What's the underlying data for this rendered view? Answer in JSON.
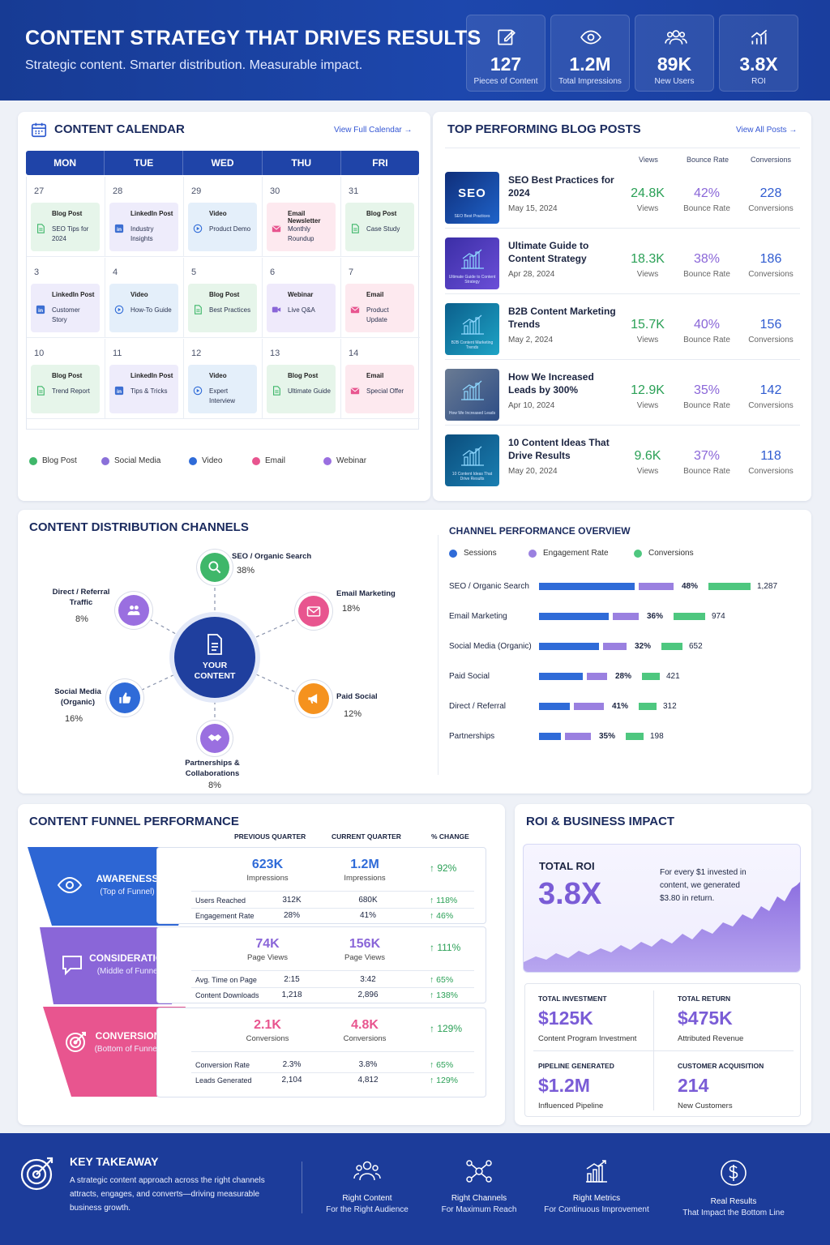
{
  "header": {
    "title": "CONTENT STRATEGY THAT DRIVES RESULTS",
    "subtitle": "Strategic content. Smarter distribution. Measurable impact.",
    "kpis": [
      {
        "value": "127",
        "label": "Pieces of Content",
        "icon": "edit-icon"
      },
      {
        "value": "1.2M",
        "label": "Total Impressions",
        "icon": "eye-icon"
      },
      {
        "value": "89K",
        "label": "New Users",
        "icon": "users-icon"
      },
      {
        "value": "3.8X",
        "label": "ROI",
        "icon": "growth-chart-icon"
      }
    ]
  },
  "calendar": {
    "title": "CONTENT CALENDAR",
    "link": "View Full Calendar →",
    "days": [
      "MON",
      "TUE",
      "WED",
      "THU",
      "FRI"
    ],
    "weeks": [
      [
        {
          "date": "27",
          "type": "blog",
          "title": "Blog Post",
          "desc": "SEO Tips for 2024"
        },
        {
          "date": "28",
          "type": "social",
          "title": "LinkedIn Post",
          "desc": "Industry Insights"
        },
        {
          "date": "29",
          "type": "video",
          "title": "Video",
          "desc": "Product Demo"
        },
        {
          "date": "30",
          "type": "email",
          "title": "Email Newsletter",
          "desc": "Monthly Roundup"
        },
        {
          "date": "31",
          "type": "blog",
          "title": "Blog Post",
          "desc": "Case Study"
        }
      ],
      [
        {
          "date": "3",
          "type": "social",
          "title": "LinkedIn Post",
          "desc": "Customer Story"
        },
        {
          "date": "4",
          "type": "video",
          "title": "Video",
          "desc": "How-To Guide"
        },
        {
          "date": "5",
          "type": "blog",
          "title": "Blog Post",
          "desc": "Best Practices"
        },
        {
          "date": "6",
          "type": "web",
          "title": "Webinar",
          "desc": "Live Q&A"
        },
        {
          "date": "7",
          "type": "email",
          "title": "Email",
          "desc": "Product Update"
        }
      ],
      [
        {
          "date": "10",
          "type": "blog",
          "title": "Blog Post",
          "desc": "Trend Report"
        },
        {
          "date": "11",
          "type": "social",
          "title": "LinkedIn Post",
          "desc": "Tips & Tricks"
        },
        {
          "date": "12",
          "type": "video",
          "title": "Video",
          "desc": "Expert Interview"
        },
        {
          "date": "13",
          "type": "blog",
          "title": "Blog Post",
          "desc": "Ultimate Guide"
        },
        {
          "date": "14",
          "type": "email",
          "title": "Email",
          "desc": "Special Offer"
        }
      ]
    ],
    "legend": [
      {
        "label": "Blog Post",
        "color": "#3fb76a"
      },
      {
        "label": "Social Media",
        "color": "#8a70d9"
      },
      {
        "label": "Video",
        "color": "#2f6bd8"
      },
      {
        "label": "Email",
        "color": "#e8558f"
      },
      {
        "label": "Webinar",
        "color": "#9a6fe0"
      }
    ]
  },
  "blog": {
    "title": "TOP PERFORMING BLOG POSTS",
    "link": "View All Posts →",
    "col_views": "Views",
    "col_bounce": "Bounce Rate",
    "col_conv": "Conversions",
    "posts": [
      {
        "title": "SEO Best Practices for 2024",
        "date": "May 15, 2024",
        "views": "24.8K",
        "bounce": "42%",
        "conversions": "228",
        "thumb": "SEO",
        "thumb_caption": "SEO Best Practices"
      },
      {
        "title": "Ultimate Guide to Content Strategy",
        "date": "Apr 28, 2024",
        "views": "18.3K",
        "bounce": "38%",
        "conversions": "186",
        "thumb": "",
        "thumb_caption": "Ultimate Guide to Content Strategy"
      },
      {
        "title": "B2B Content Marketing Trends",
        "date": "May 2, 2024",
        "views": "15.7K",
        "bounce": "40%",
        "conversions": "156",
        "thumb": "",
        "thumb_caption": "B2B Content Marketing Trends"
      },
      {
        "title": "How We Increased Leads by 300%",
        "date": "Apr 10, 2024",
        "views": "12.9K",
        "bounce": "35%",
        "conversions": "142",
        "thumb": "",
        "thumb_caption": "How We Increased Leads"
      },
      {
        "title": "10 Content Ideas That Drive Results",
        "date": "May 20, 2024",
        "views": "9.6K",
        "bounce": "37%",
        "conversions": "118",
        "thumb": "",
        "thumb_caption": "10 Content Ideas That Drive Results"
      }
    ],
    "metric_labels": {
      "views": "Views",
      "bounce": "Bounce Rate",
      "conversions": "Conversions"
    }
  },
  "channels": {
    "title": "CONTENT DISTRIBUTION CHANNELS",
    "center": "YOUR CONTENT",
    "nodes": [
      {
        "name": "SEO / Organic Search",
        "pct": "38%",
        "color": "#3fb76a",
        "icon": "search-icon"
      },
      {
        "name": "Email Marketing",
        "pct": "18%",
        "color": "#e8558f",
        "icon": "envelope-icon"
      },
      {
        "name": "Paid Social",
        "pct": "12%",
        "color": "#f5921e",
        "icon": "megaphone-icon"
      },
      {
        "name": "Partnerships & Collaborations",
        "pct": "8%",
        "color": "#9a6fe0",
        "icon": "handshake-icon"
      },
      {
        "name": "Social Media (Organic)",
        "pct": "16%",
        "color": "#2f6bd8",
        "icon": "thumbs-up-icon"
      },
      {
        "name": "Direct / Referral Traffic",
        "pct": "8%",
        "color": "#9a6fe0",
        "icon": "people-icon"
      }
    ]
  },
  "channel_perf": {
    "title": "CHANNEL PERFORMANCE OVERVIEW",
    "legend": [
      {
        "label": "Sessions",
        "color": "#2f6bd8"
      },
      {
        "label": "Engagement Rate",
        "color": "#9a80e0"
      },
      {
        "label": "Conversions",
        "color": "#4ec77f"
      }
    ],
    "rows": [
      {
        "name": "SEO / Organic Search",
        "sessions": 1.0,
        "engagement": "48%",
        "engagement_v": 48,
        "conversions": "1,287",
        "conversions_v": 1287
      },
      {
        "name": "Email Marketing",
        "sessions": 0.73,
        "engagement": "36%",
        "engagement_v": 36,
        "conversions": "974",
        "conversions_v": 974
      },
      {
        "name": "Social Media (Organic)",
        "sessions": 0.63,
        "engagement": "32%",
        "engagement_v": 32,
        "conversions": "652",
        "conversions_v": 652
      },
      {
        "name": "Paid Social",
        "sessions": 0.46,
        "engagement": "28%",
        "engagement_v": 28,
        "conversions": "421",
        "conversions_v": 421
      },
      {
        "name": "Direct / Referral",
        "sessions": 0.32,
        "engagement": "41%",
        "engagement_v": 41,
        "conversions": "312",
        "conversions_v": 312
      },
      {
        "name": "Partnerships",
        "sessions": 0.23,
        "engagement": "35%",
        "engagement_v": 35,
        "conversions": "198",
        "conversions_v": 198
      }
    ]
  },
  "funnel": {
    "title": "CONTENT FUNNEL PERFORMANCE",
    "col_prev": "PREVIOUS QUARTER",
    "col_curr": "CURRENT QUARTER",
    "col_change": "% CHANGE",
    "stages": [
      {
        "name": "AWARENESS",
        "sub": "(Top of Funnel)",
        "color": "#2f6bd8",
        "icon": "eye-icon",
        "prev": "623K",
        "curr": "1.2M",
        "metric": "Impressions",
        "change": "↑ 92%",
        "rows": [
          {
            "label": "Users Reached",
            "prev": "312K",
            "curr": "680K",
            "change": "↑ 118%"
          },
          {
            "label": "Engagement Rate",
            "prev": "28%",
            "curr": "41%",
            "change": "↑ 46%"
          }
        ]
      },
      {
        "name": "CONSIDERATION",
        "sub": "(Middle of Funnel)",
        "color": "#8a66d8",
        "icon": "chat-icon",
        "prev": "74K",
        "curr": "156K",
        "metric": "Page Views",
        "change": "↑ 111%",
        "rows": [
          {
            "label": "Avg. Time on Page",
            "prev": "2:15",
            "curr": "3:42",
            "change": "↑ 65%"
          },
          {
            "label": "Content Downloads",
            "prev": "1,218",
            "curr": "2,896",
            "change": "↑ 138%"
          }
        ]
      },
      {
        "name": "CONVERSION",
        "sub": "(Bottom of Funnel)",
        "color": "#e8558f",
        "icon": "target-icon",
        "prev": "2.1K",
        "curr": "4.8K",
        "metric": "Conversions",
        "change": "↑ 129%",
        "rows": [
          {
            "label": "Conversion Rate",
            "prev": "2.3%",
            "curr": "3.8%",
            "change": "↑ 65%"
          },
          {
            "label": "Leads Generated",
            "prev": "2,104",
            "curr": "4,812",
            "change": "↑ 129%"
          }
        ]
      }
    ]
  },
  "roi": {
    "title": "ROI & BUSINESS IMPACT",
    "total_label": "TOTAL ROI",
    "total_value": "3.8X",
    "total_note": "For every $1 invested in content, we generated $3.80 in return.",
    "stats": [
      {
        "head": "TOTAL INVESTMENT",
        "value": "$125K",
        "sub": "Content Program Investment"
      },
      {
        "head": "TOTAL RETURN",
        "value": "$475K",
        "sub": "Attributed Revenue"
      },
      {
        "head": "PIPELINE GENERATED",
        "value": "$1.2M",
        "sub": "Influenced Pipeline"
      },
      {
        "head": "CUSTOMER ACQUISITION",
        "value": "214",
        "sub": "New Customers"
      }
    ]
  },
  "footer": {
    "title": "KEY TAKEAWAY",
    "text": "A strategic content approach across the right channels attracts, engages, and converts—driving measurable business growth.",
    "items": [
      {
        "a": "Right Content",
        "b": "For the Right Audience",
        "icon": "audience-icon"
      },
      {
        "a": "Right Channels",
        "b": "For Maximum Reach",
        "icon": "network-icon"
      },
      {
        "a": "Right Metrics",
        "b": "For Continuous Improvement",
        "icon": "bar-chart-icon"
      },
      {
        "a": "Real Results",
        "b": "That Impact the Bottom Line",
        "icon": "dollar-icon"
      }
    ]
  }
}
